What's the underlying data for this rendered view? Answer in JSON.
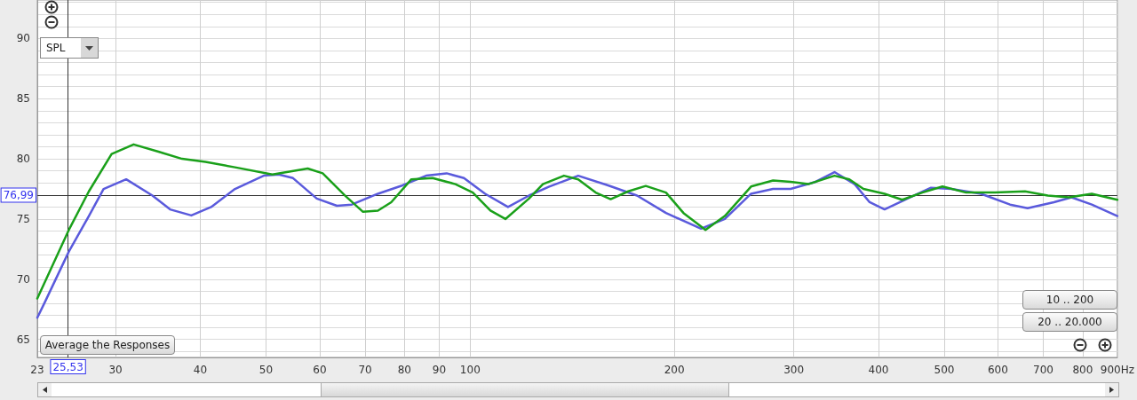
{
  "chart_data": {
    "type": "line",
    "series": [
      {
        "color": "#5a5adc",
        "x": [
          23,
          23.6,
          25.6,
          27.4,
          28.8,
          31.1,
          34.0,
          36.1,
          38.8,
          41.5,
          45.0,
          49.6,
          52.2,
          54.8,
          59.4,
          63.6,
          66.9,
          73.1,
          79.5,
          86.1,
          92.3,
          97.9,
          105.2,
          113.7,
          122.1,
          130.8,
          144.3,
          159.7,
          176.2,
          194.4,
          219.0,
          237.4,
          259.5,
          279.6,
          296.8,
          321.7,
          344.5,
          368.9,
          388.1,
          408.3,
          441.3,
          478.1,
          512.0,
          566.6,
          625.2,
          663.6,
          725.7,
          770.3,
          825.1,
          900
        ],
        "values": [
          66.8,
          68.1,
          72.3,
          75.25,
          77.5,
          78.3,
          76.95,
          75.8,
          75.3,
          76.0,
          77.5,
          78.6,
          78.7,
          78.4,
          76.7,
          76.1,
          76.2,
          77.1,
          77.8,
          78.6,
          78.8,
          78.4,
          77.1,
          76.0,
          76.95,
          77.7,
          78.6,
          77.8,
          76.95,
          75.5,
          74.2,
          75.0,
          77.1,
          77.5,
          77.5,
          78.05,
          78.9,
          77.9,
          76.4,
          75.8,
          76.7,
          77.6,
          77.5,
          77.1,
          76.2,
          75.9,
          76.4,
          76.8,
          76.2,
          75.25
        ]
      },
      {
        "color": "#1aa01a",
        "x": [
          23,
          25.6,
          27.4,
          29.6,
          31.9,
          34.7,
          37.6,
          40.7,
          45.0,
          51.1,
          57.6,
          60.6,
          65.5,
          69.5,
          73.1,
          76.5,
          81.9,
          88.0,
          95.1,
          100.9,
          107.1,
          112.7,
          122.1,
          128.0,
          137.5,
          144.3,
          153.1,
          161.1,
          171.0,
          181.5,
          194.4,
          206.3,
          222.3,
          237.4,
          259.5,
          279.6,
          296.8,
          315.1,
          344.5,
          362.3,
          380.1,
          408.3,
          433.5,
          464.1,
          497.0,
          538.6,
          594.3,
          657.7,
          710.8,
          763.4,
          825.1,
          900
        ],
        "values": [
          68.4,
          74.1,
          77.3,
          80.4,
          81.2,
          80.6,
          80.0,
          79.75,
          79.3,
          78.7,
          79.2,
          78.8,
          76.9,
          75.6,
          75.7,
          76.4,
          78.3,
          78.4,
          77.9,
          77.2,
          75.7,
          75.0,
          76.7,
          77.9,
          78.6,
          78.3,
          77.2,
          76.65,
          77.3,
          77.75,
          77.2,
          75.5,
          74.1,
          75.25,
          77.7,
          78.2,
          78.1,
          77.9,
          78.6,
          78.3,
          77.5,
          77.1,
          76.6,
          77.2,
          77.7,
          77.2,
          77.2,
          77.3,
          76.95,
          76.8,
          77.1,
          76.6
        ]
      }
    ],
    "xlim": [
      23,
      900
    ],
    "xticks": [
      23,
      30,
      40,
      50,
      60,
      70,
      80,
      90,
      100,
      200,
      300,
      400,
      500,
      600,
      700,
      800,
      {
        "value": 900,
        "label": "900Hz"
      }
    ],
    "ylim": [
      63.5,
      93.2
    ],
    "yticks": [
      {
        "value": 64,
        "label": null
      },
      65,
      {
        "value": 66,
        "label": null
      },
      {
        "value": 67,
        "label": null
      },
      {
        "value": 68,
        "label": null
      },
      {
        "value": 69,
        "label": null
      },
      70,
      {
        "value": 71,
        "label": null
      },
      {
        "value": 72,
        "label": null
      },
      {
        "value": 73,
        "label": null
      },
      {
        "value": 74,
        "label": null
      },
      75,
      {
        "value": 76,
        "label": null
      },
      {
        "value": 77,
        "label": null
      },
      {
        "value": 78,
        "label": null
      },
      {
        "value": 79,
        "label": null
      },
      80,
      {
        "value": 81,
        "label": null
      },
      {
        "value": 82,
        "label": null
      },
      {
        "value": 83,
        "label": null
      },
      {
        "value": 84,
        "label": null
      },
      85,
      {
        "value": 86,
        "label": null
      },
      {
        "value": 87,
        "label": null
      },
      {
        "value": 88,
        "label": null
      },
      {
        "value": 89,
        "label": null
      },
      90,
      {
        "value": 91,
        "label": null
      },
      {
        "value": 92,
        "label": null
      },
      {
        "value": 93,
        "label": null
      }
    ],
    "log": "x",
    "ref_lines": [
      {
        "axis": "x",
        "value": 25.53,
        "label": "25,53"
      },
      {
        "axis": "y",
        "value": 76.99,
        "label": "76,99"
      }
    ],
    "annotations": [
      "SPL",
      "Average the Responses",
      "10 .. 200",
      "20 .. 20.000"
    ],
    "grid": true,
    "marker": "none",
    "line_style": "solid"
  }
}
